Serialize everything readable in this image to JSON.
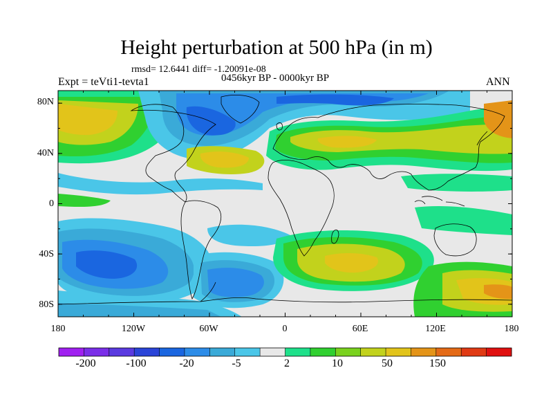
{
  "title": "Height perturbation at 500 hPa (in m)",
  "stats": "rmsd= 12.6441 diff= -1.20091e-08",
  "period": "0456kyr BP - 0000kyr BP",
  "experiment": "Expt = teVti1-tevta1",
  "season": "ANN",
  "map": {
    "projection": "cylindrical equidistant",
    "lon_range": [
      -180,
      180
    ],
    "lat_range": [
      -90,
      90
    ],
    "field": "500 hPa geopotential height perturbation",
    "units": "m"
  },
  "axes": {
    "y_ticks": [
      "80N",
      "40N",
      "0",
      "40S",
      "80S"
    ],
    "x_ticks": [
      "180",
      "120W",
      "60W",
      "0",
      "60E",
      "120E",
      "180"
    ]
  },
  "colorbar": {
    "labels": [
      "-200",
      "-100",
      "-20",
      "-5",
      "2",
      "10",
      "50",
      "150"
    ],
    "colors": [
      "#a020f0",
      "#7a2ee8",
      "#5a3ae0",
      "#2a44d8",
      "#1a66e0",
      "#2c8ce8",
      "#3aaad8",
      "#4ac6e8",
      "#e8e8e8",
      "#1ee08a",
      "#30d030",
      "#7ad21e",
      "#c2d21c",
      "#e2c41a",
      "#e49418",
      "#e46a16",
      "#e03a14",
      "#e01010"
    ]
  }
}
